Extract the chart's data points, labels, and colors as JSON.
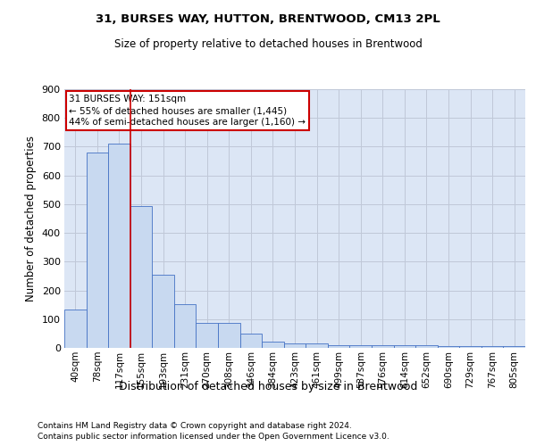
{
  "title": "31, BURSES WAY, HUTTON, BRENTWOOD, CM13 2PL",
  "subtitle": "Size of property relative to detached houses in Brentwood",
  "xlabel": "Distribution of detached houses by size in Brentwood",
  "ylabel": "Number of detached properties",
  "bin_labels": [
    "40sqm",
    "78sqm",
    "117sqm",
    "155sqm",
    "193sqm",
    "231sqm",
    "270sqm",
    "308sqm",
    "346sqm",
    "384sqm",
    "423sqm",
    "461sqm",
    "499sqm",
    "537sqm",
    "576sqm",
    "614sqm",
    "652sqm",
    "690sqm",
    "729sqm",
    "767sqm",
    "805sqm"
  ],
  "bar_heights": [
    135,
    680,
    710,
    493,
    253,
    152,
    88,
    88,
    50,
    22,
    17,
    17,
    10,
    10,
    10,
    9,
    9,
    6,
    6,
    6,
    6
  ],
  "bar_color": "#c8d9f0",
  "bar_edge_color": "#4472c4",
  "vline_index": 3,
  "vline_color": "#cc0000",
  "annotation_line1": "31 BURSES WAY: 151sqm",
  "annotation_line2": "← 55% of detached houses are smaller (1,445)",
  "annotation_line3": "44% of semi-detached houses are larger (1,160) →",
  "annotation_box_color": "#ffffff",
  "annotation_box_edge": "#cc0000",
  "ylim": [
    0,
    900
  ],
  "yticks": [
    0,
    100,
    200,
    300,
    400,
    500,
    600,
    700,
    800,
    900
  ],
  "grid_color": "#c0c8d8",
  "bg_color": "#dce6f5",
  "footer_line1": "Contains HM Land Registry data © Crown copyright and database right 2024.",
  "footer_line2": "Contains public sector information licensed under the Open Government Licence v3.0."
}
